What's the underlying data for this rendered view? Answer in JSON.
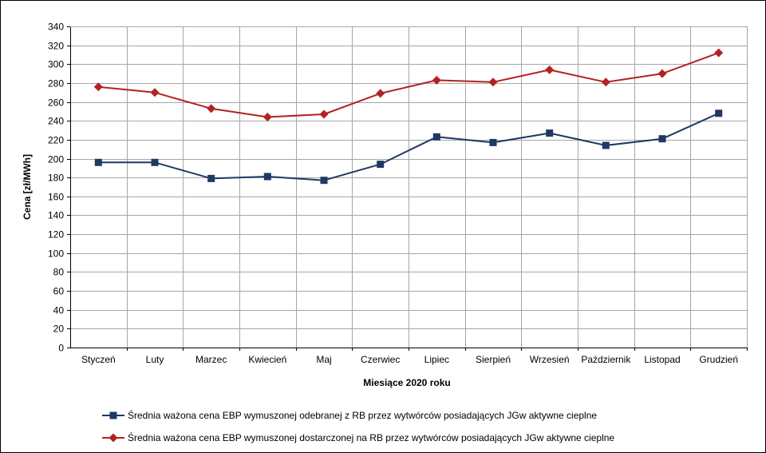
{
  "chart_data": {
    "type": "line",
    "title": "",
    "xlabel": "Miesiące 2020  roku",
    "ylabel": "Cena [zł/MWh]",
    "ylim": [
      0,
      340
    ],
    "ytick_step": 20,
    "yticks": [
      "0",
      "20",
      "40",
      "60",
      "80",
      "100",
      "120",
      "140",
      "160",
      "180",
      "200",
      "220",
      "240",
      "260",
      "280",
      "300",
      "320",
      "340"
    ],
    "grid": true,
    "legend_position": "bottom",
    "categories": [
      "Styczeń",
      "Luty",
      "Marzec",
      "Kwiecień",
      "Maj",
      "Czerwiec",
      "Lipiec",
      "Sierpień",
      "Wrzesień",
      "Październik",
      "Listopad",
      "Grudzień"
    ],
    "series": [
      {
        "name": "Średnia ważona cena EBP wymuszonej odebranej z RB przez wytwórców posiadających JGw aktywne cieplne",
        "color": "#1F3864",
        "marker": "square",
        "values": [
          196,
          196,
          179,
          181,
          177,
          194,
          223,
          217,
          227,
          214,
          221,
          248
        ]
      },
      {
        "name": "Średnia ważona cena EBP wymuszonej dostarczonej na RB przez wytwórców posiadających JGw aktywne cieplne",
        "color": "#B22222",
        "marker": "diamond",
        "values": [
          276,
          270,
          253,
          244,
          247,
          269,
          283,
          281,
          294,
          281,
          290,
          312
        ]
      }
    ]
  }
}
